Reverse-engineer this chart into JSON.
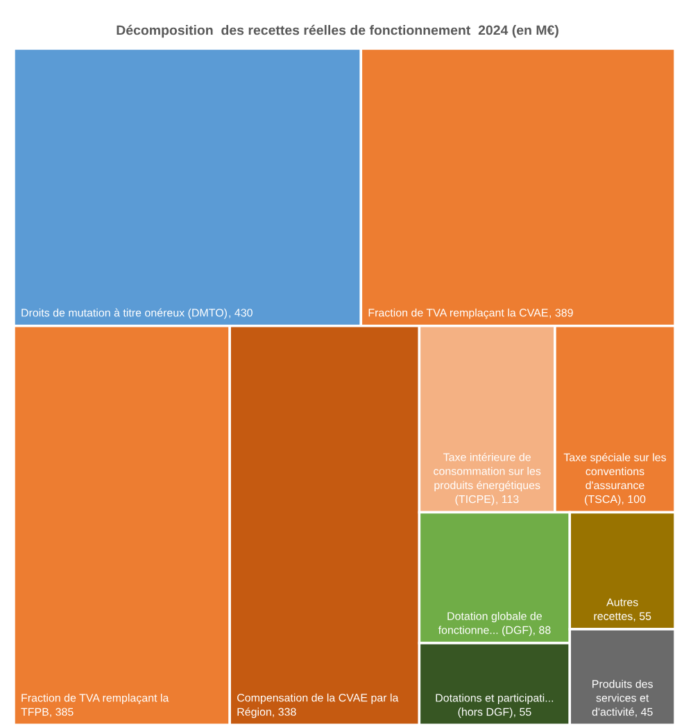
{
  "chart_data": {
    "type": "other",
    "title": "Décomposition  des recettes réelles de fonctionnement  2024 (en M€)",
    "categories": [
      "Droits de mutation à titre onéreux (DMTO)",
      "Fraction de TVA remplaçant la CVAE",
      "Fraction de TVA remplaçant la TFPB",
      "Compensation de la CVAE par la Région",
      "Taxe intérieure de consommation sur les produits énergétiques (TICPE)",
      "Taxe spéciale sur les conventions d'assurance (TSCA)",
      "Dotation globale de fonctionne... (DGF)",
      "Dotations et participati... (hors DGF)",
      "Autres recettes",
      "Produits des services et d'activité"
    ],
    "values": [
      430,
      389,
      385,
      338,
      113,
      100,
      88,
      55,
      55,
      45
    ],
    "colors": [
      "#5b9bd5",
      "#ed7d31",
      "#ed7d31",
      "#c55a11",
      "#f4b183",
      "#ed7d31",
      "#70ad47",
      "#375623",
      "#997300",
      "#6a6a6a"
    ],
    "value_labels": [
      ", 430",
      ", 389",
      ", 385",
      ", 338",
      ", 113",
      ", 100",
      ", 88",
      ", 55",
      ", 55",
      ", 45"
    ]
  }
}
